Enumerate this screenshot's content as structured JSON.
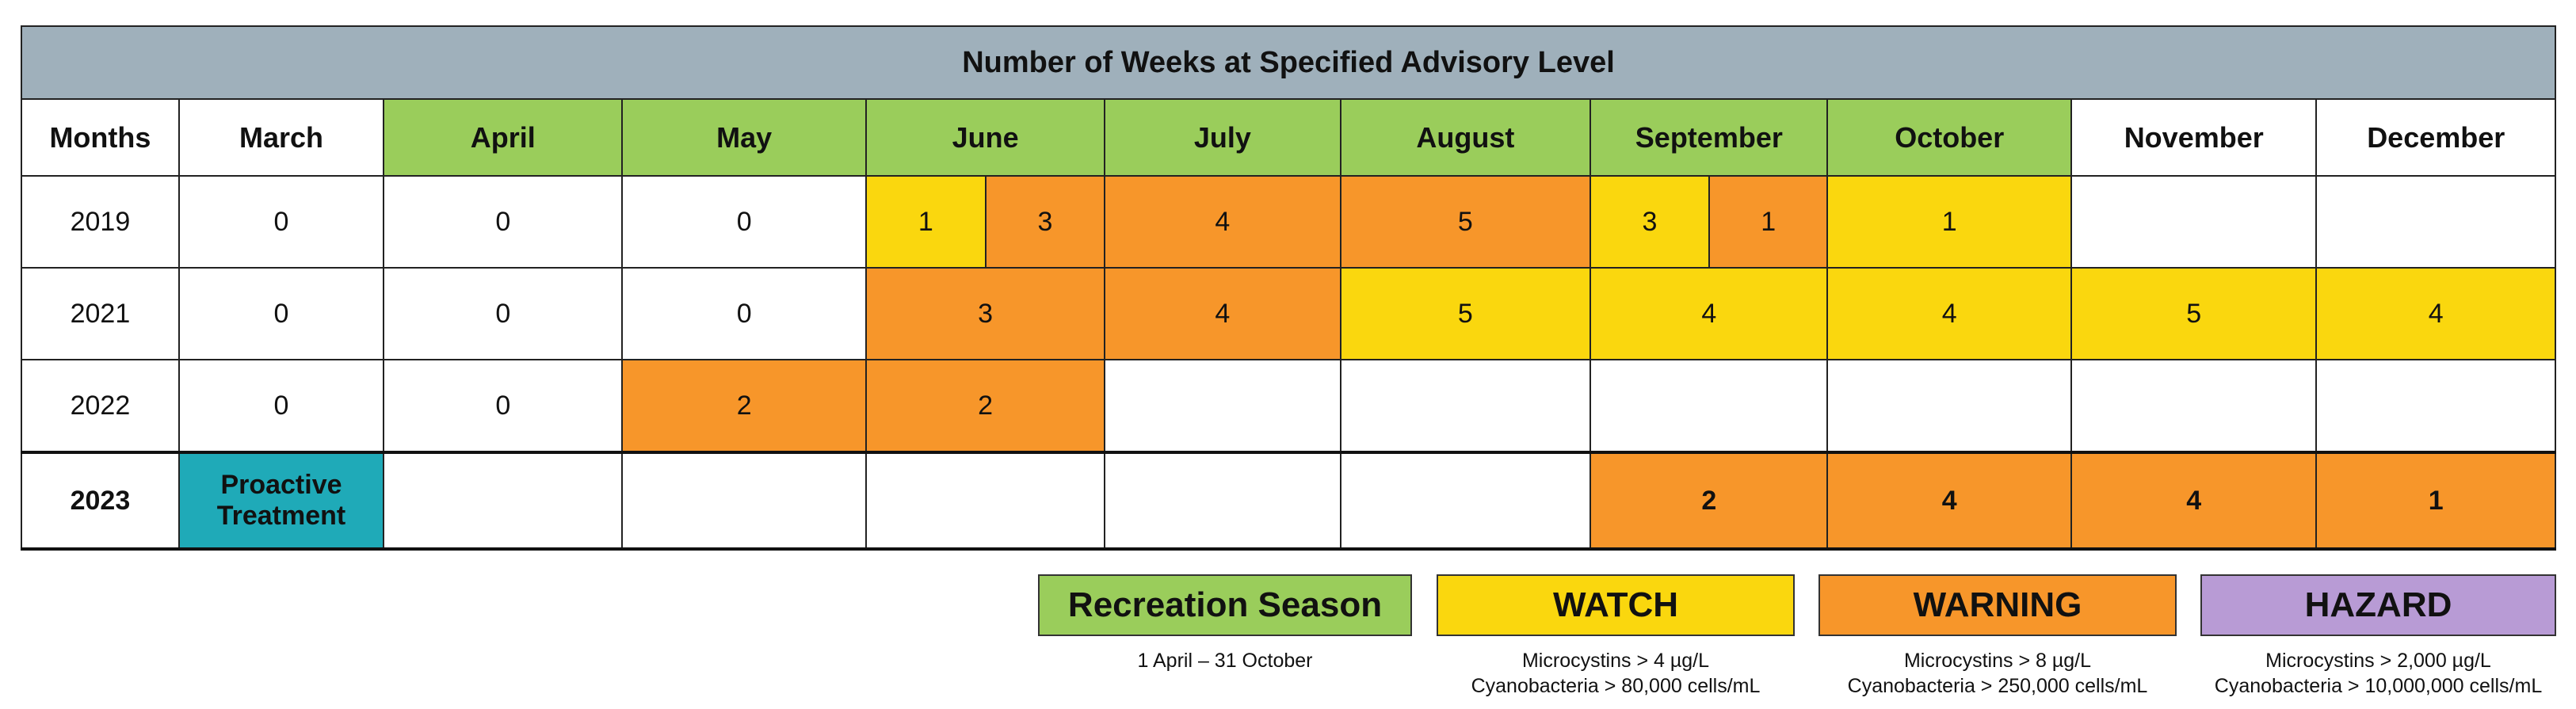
{
  "title": "Number of Weeks at Specified Advisory Level",
  "colors": {
    "recreation": "#9acd5b",
    "watch": "#fad70e",
    "warning": "#f7962a",
    "hazard": "#b89bd5",
    "proactive": "#1faab8",
    "title_bg": "#9fb0bb"
  },
  "headers": [
    "Months",
    "March",
    "April",
    "May",
    "June",
    "July",
    "August",
    "September",
    "October",
    "November",
    "December"
  ],
  "rows": [
    {
      "year": "2019",
      "cells": [
        {
          "text": "0",
          "level": "none"
        },
        {
          "text": "0",
          "level": "none"
        },
        {
          "text": "0",
          "level": "none"
        },
        {
          "split": [
            {
              "text": "1",
              "level": "watch"
            },
            {
              "text": "3",
              "level": "warning"
            }
          ]
        },
        {
          "text": "4",
          "level": "warning"
        },
        {
          "text": "5",
          "level": "warning"
        },
        {
          "split": [
            {
              "text": "3",
              "level": "watch"
            },
            {
              "text": "1",
              "level": "warning"
            }
          ]
        },
        {
          "text": "1",
          "level": "watch"
        },
        {
          "text": "",
          "level": "none"
        },
        {
          "text": "",
          "level": "none"
        }
      ]
    },
    {
      "year": "2021",
      "cells": [
        {
          "text": "0",
          "level": "none"
        },
        {
          "text": "0",
          "level": "none"
        },
        {
          "text": "0",
          "level": "none"
        },
        {
          "text": "3",
          "level": "warning"
        },
        {
          "text": "4",
          "level": "warning"
        },
        {
          "text": "5",
          "level": "watch"
        },
        {
          "text": "4",
          "level": "watch"
        },
        {
          "text": "4",
          "level": "watch"
        },
        {
          "text": "5",
          "level": "watch"
        },
        {
          "text": "4",
          "level": "watch"
        }
      ]
    },
    {
      "year": "2022",
      "cells": [
        {
          "text": "0",
          "level": "none"
        },
        {
          "text": "0",
          "level": "none"
        },
        {
          "text": "2",
          "level": "warning"
        },
        {
          "text": "2",
          "level": "warning"
        },
        {
          "text": "",
          "level": "none"
        },
        {
          "text": "",
          "level": "none"
        },
        {
          "text": "",
          "level": "none"
        },
        {
          "text": "",
          "level": "none"
        },
        {
          "text": "",
          "level": "none"
        },
        {
          "text": "",
          "level": "none"
        }
      ]
    },
    {
      "year": "2023",
      "cells": [
        {
          "text": "Proactive Treatment",
          "level": "proactive"
        },
        {
          "text": "",
          "level": "none"
        },
        {
          "text": "",
          "level": "none"
        },
        {
          "text": "",
          "level": "none"
        },
        {
          "text": "",
          "level": "none"
        },
        {
          "text": "",
          "level": "none"
        },
        {
          "text": "2",
          "level": "warning"
        },
        {
          "text": "4",
          "level": "warning"
        },
        {
          "text": "4",
          "level": "warning"
        },
        {
          "text": "1",
          "level": "warning"
        }
      ]
    }
  ],
  "legend": [
    {
      "key": "recreation",
      "label": "Recreation Season",
      "lines": [
        "1 April – 31 October"
      ]
    },
    {
      "key": "watch",
      "label": "WATCH",
      "lines": [
        "Microcystins > 4 µg/L",
        "Cyanobacteria > 80,000 cells/mL"
      ]
    },
    {
      "key": "warning",
      "label": "WARNING",
      "lines": [
        "Microcystins > 8 µg/L",
        "Cyanobacteria > 250,000 cells/mL"
      ]
    },
    {
      "key": "hazard",
      "label": "HAZARD",
      "lines": [
        "Microcystins > 2,000 µg/L",
        "Cyanobacteria > 10,000,000 cells/mL"
      ]
    }
  ],
  "chart_data": {
    "type": "table",
    "title": "Number of Weeks at Specified Advisory Level",
    "columns": [
      "Months",
      "March",
      "April",
      "May",
      "June",
      "July",
      "August",
      "September",
      "October",
      "November",
      "December"
    ],
    "recreation_season_months": [
      "April",
      "May",
      "June",
      "July",
      "August",
      "September",
      "October"
    ],
    "rows": {
      "2019": {
        "March": 0,
        "April": 0,
        "May": 0,
        "June": {
          "WATCH": 1,
          "WARNING": 3
        },
        "July": {
          "WARNING": 4
        },
        "August": {
          "WARNING": 5
        },
        "September": {
          "WATCH": 3,
          "WARNING": 1
        },
        "October": {
          "WATCH": 1
        },
        "November": null,
        "December": null
      },
      "2021": {
        "March": 0,
        "April": 0,
        "May": 0,
        "June": {
          "WARNING": 3
        },
        "July": {
          "WARNING": 4
        },
        "August": {
          "WATCH": 5
        },
        "September": {
          "WATCH": 4
        },
        "October": {
          "WATCH": 4
        },
        "November": {
          "WATCH": 5
        },
        "December": {
          "WATCH": 4
        }
      },
      "2022": {
        "March": 0,
        "April": 0,
        "May": {
          "WARNING": 2
        },
        "June": {
          "WARNING": 2
        },
        "July": null,
        "August": null,
        "September": null,
        "October": null,
        "November": null,
        "December": null
      },
      "2023": {
        "March": "Proactive Treatment",
        "April": null,
        "May": null,
        "June": null,
        "July": null,
        "August": null,
        "September": {
          "WARNING": 2
        },
        "October": {
          "WARNING": 4
        },
        "November": {
          "WARNING": 4
        },
        "December": {
          "WARNING": 1
        }
      }
    }
  }
}
